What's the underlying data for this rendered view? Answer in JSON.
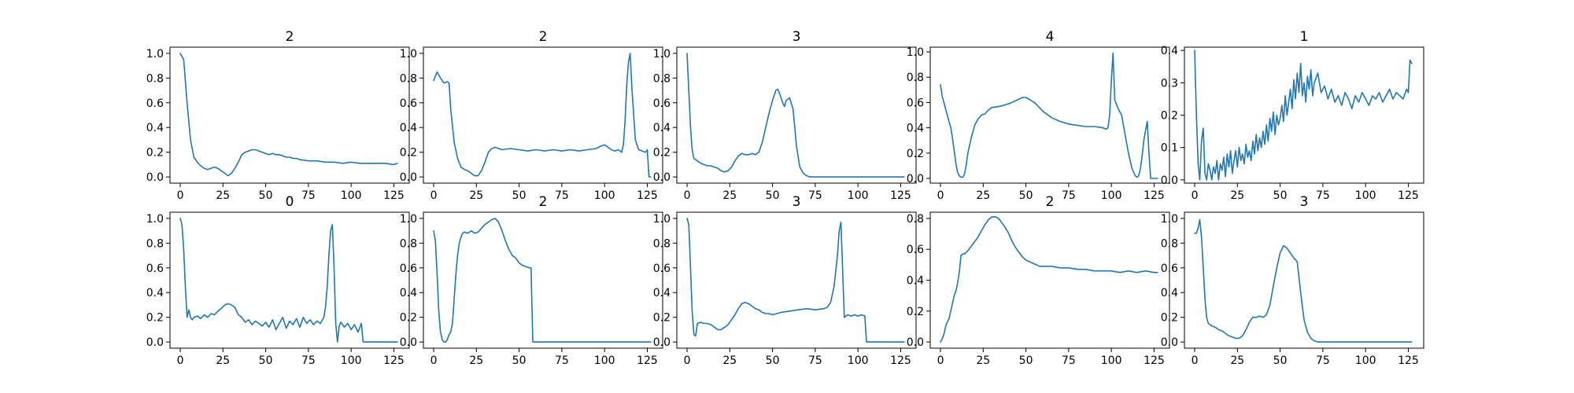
{
  "figure": {
    "line_color": "#1f77b4"
  },
  "chart_data": [
    {
      "type": "line",
      "title": "2",
      "xlim": [
        -6,
        134
      ],
      "ylim": [
        -0.05,
        1.05
      ],
      "xticks": [
        0,
        25,
        50,
        75,
        100,
        125
      ],
      "yticks": [
        0.0,
        0.2,
        0.4,
        0.6,
        0.8,
        1.0
      ],
      "ytick_decimals": 1,
      "x": [
        0,
        2,
        4,
        6,
        8,
        10,
        12,
        14,
        16,
        18,
        20,
        22,
        24,
        26,
        28,
        30,
        32,
        34,
        36,
        38,
        40,
        42,
        44,
        46,
        48,
        50,
        52,
        54,
        56,
        58,
        60,
        62,
        64,
        66,
        68,
        70,
        75,
        80,
        85,
        90,
        95,
        100,
        105,
        110,
        115,
        120,
        125,
        127
      ],
      "y": [
        1.0,
        0.95,
        0.6,
        0.3,
        0.16,
        0.12,
        0.09,
        0.07,
        0.06,
        0.07,
        0.08,
        0.07,
        0.05,
        0.03,
        0.01,
        0.03,
        0.07,
        0.12,
        0.18,
        0.2,
        0.21,
        0.22,
        0.22,
        0.21,
        0.2,
        0.19,
        0.18,
        0.19,
        0.18,
        0.18,
        0.17,
        0.16,
        0.16,
        0.15,
        0.15,
        0.14,
        0.13,
        0.13,
        0.12,
        0.12,
        0.11,
        0.12,
        0.11,
        0.11,
        0.11,
        0.11,
        0.1,
        0.11
      ]
    },
    {
      "type": "line",
      "title": "2",
      "xlim": [
        -6,
        134
      ],
      "ylim": [
        -0.05,
        1.05
      ],
      "xticks": [
        0,
        25,
        50,
        75,
        100,
        125
      ],
      "yticks": [
        0.0,
        0.2,
        0.4,
        0.6,
        0.8,
        1.0
      ],
      "ytick_decimals": 1,
      "x": [
        0,
        2,
        4,
        6,
        8,
        9,
        10,
        12,
        14,
        16,
        18,
        20,
        22,
        24,
        26,
        28,
        30,
        32,
        34,
        36,
        40,
        45,
        50,
        55,
        60,
        65,
        70,
        75,
        80,
        85,
        90,
        95,
        98,
        100,
        102,
        104,
        106,
        108,
        110,
        111,
        112,
        113,
        114,
        115,
        116,
        118,
        120,
        122,
        124,
        125,
        126,
        127
      ],
      "y": [
        0.78,
        0.85,
        0.8,
        0.76,
        0.77,
        0.76,
        0.55,
        0.28,
        0.15,
        0.08,
        0.06,
        0.05,
        0.03,
        0.01,
        0.01,
        0.05,
        0.12,
        0.2,
        0.23,
        0.24,
        0.22,
        0.23,
        0.22,
        0.21,
        0.22,
        0.21,
        0.22,
        0.21,
        0.22,
        0.21,
        0.22,
        0.23,
        0.25,
        0.26,
        0.24,
        0.22,
        0.21,
        0.22,
        0.2,
        0.26,
        0.45,
        0.75,
        0.93,
        1.0,
        0.72,
        0.3,
        0.22,
        0.21,
        0.2,
        0.22,
        0.0,
        0.0
      ]
    },
    {
      "type": "line",
      "title": "3",
      "xlim": [
        -6,
        134
      ],
      "ylim": [
        -0.05,
        1.05
      ],
      "xticks": [
        0,
        25,
        50,
        75,
        100,
        125
      ],
      "yticks": [
        0.0,
        0.2,
        0.4,
        0.6,
        0.8,
        1.0
      ],
      "ytick_decimals": 1,
      "x": [
        0,
        1,
        2,
        3,
        4,
        5,
        6,
        8,
        10,
        12,
        14,
        16,
        18,
        20,
        22,
        24,
        26,
        28,
        30,
        32,
        34,
        36,
        38,
        40,
        42,
        44,
        46,
        48,
        50,
        52,
        53,
        54,
        56,
        57,
        58,
        60,
        62,
        64,
        66,
        68,
        70,
        72,
        75,
        80,
        90,
        100,
        110,
        120,
        127
      ],
      "y": [
        1.0,
        0.7,
        0.4,
        0.22,
        0.15,
        0.14,
        0.13,
        0.11,
        0.1,
        0.09,
        0.09,
        0.08,
        0.07,
        0.05,
        0.04,
        0.05,
        0.08,
        0.13,
        0.17,
        0.19,
        0.18,
        0.18,
        0.19,
        0.18,
        0.2,
        0.28,
        0.4,
        0.52,
        0.62,
        0.7,
        0.71,
        0.68,
        0.6,
        0.57,
        0.62,
        0.64,
        0.55,
        0.25,
        0.08,
        0.03,
        0.01,
        0.0,
        0.0,
        0.0,
        0.0,
        0.0,
        0.0,
        0.0,
        0.0
      ]
    },
    {
      "type": "line",
      "title": "4",
      "xlim": [
        -6,
        134
      ],
      "ylim": [
        -0.0375,
        1.0375
      ],
      "xticks": [
        0,
        25,
        50,
        75,
        100,
        125
      ],
      "yticks": [
        0.0,
        0.2,
        0.4,
        0.6,
        0.8,
        1.0
      ],
      "ytick_decimals": 1,
      "x": [
        0,
        1,
        3,
        5,
        6,
        7,
        8,
        9,
        10,
        11,
        12,
        13,
        14,
        15,
        16,
        18,
        20,
        22,
        24,
        26,
        28,
        30,
        35,
        40,
        45,
        48,
        50,
        55,
        60,
        65,
        70,
        75,
        80,
        85,
        90,
        95,
        97,
        98,
        99,
        100,
        101,
        102,
        104,
        106,
        108,
        110,
        112,
        114,
        115,
        116,
        117,
        118,
        119,
        120,
        121,
        122,
        123,
        124,
        125,
        126,
        127
      ],
      "y": [
        0.74,
        0.65,
        0.55,
        0.45,
        0.4,
        0.32,
        0.22,
        0.12,
        0.05,
        0.02,
        0.01,
        0.01,
        0.03,
        0.1,
        0.2,
        0.32,
        0.42,
        0.47,
        0.5,
        0.51,
        0.54,
        0.56,
        0.57,
        0.59,
        0.62,
        0.64,
        0.64,
        0.6,
        0.53,
        0.48,
        0.45,
        0.43,
        0.42,
        0.41,
        0.41,
        0.4,
        0.39,
        0.4,
        0.5,
        0.78,
        0.99,
        0.62,
        0.55,
        0.5,
        0.35,
        0.2,
        0.08,
        0.02,
        0.01,
        0.02,
        0.08,
        0.18,
        0.3,
        0.38,
        0.45,
        0.2,
        0.0,
        0.0,
        0.0,
        0.0,
        0.0
      ]
    },
    {
      "type": "line",
      "title": "1",
      "xlim": [
        -6,
        134
      ],
      "ylim": [
        -0.01,
        0.41
      ],
      "xticks": [
        0,
        25,
        50,
        75,
        100,
        125
      ],
      "yticks": [
        0.0,
        0.1,
        0.2,
        0.3,
        0.4
      ],
      "ytick_decimals": 1,
      "x": [
        0,
        1,
        2,
        3,
        4,
        5,
        6,
        7,
        8,
        9,
        10,
        11,
        12,
        13,
        14,
        15,
        16,
        17,
        18,
        19,
        20,
        21,
        22,
        23,
        24,
        25,
        26,
        27,
        28,
        29,
        30,
        31,
        32,
        33,
        34,
        35,
        36,
        37,
        38,
        39,
        40,
        41,
        42,
        43,
        44,
        45,
        46,
        47,
        48,
        49,
        50,
        51,
        52,
        53,
        54,
        55,
        56,
        57,
        58,
        59,
        60,
        61,
        62,
        63,
        64,
        65,
        66,
        67,
        68,
        69,
        70,
        72,
        74,
        76,
        78,
        80,
        82,
        84,
        86,
        88,
        90,
        92,
        94,
        96,
        98,
        100,
        102,
        104,
        106,
        108,
        110,
        112,
        114,
        116,
        118,
        120,
        122,
        124,
        125,
        126,
        127
      ],
      "y": [
        0.4,
        0.2,
        0.05,
        0.0,
        0.12,
        0.16,
        0.02,
        0.0,
        0.05,
        0.03,
        0.0,
        0.04,
        0.02,
        0.06,
        0.0,
        0.05,
        0.03,
        0.07,
        0.01,
        0.08,
        0.04,
        0.09,
        0.02,
        0.06,
        0.09,
        0.04,
        0.1,
        0.06,
        0.08,
        0.05,
        0.11,
        0.07,
        0.09,
        0.06,
        0.12,
        0.08,
        0.14,
        0.09,
        0.13,
        0.1,
        0.15,
        0.11,
        0.17,
        0.12,
        0.19,
        0.15,
        0.21,
        0.14,
        0.2,
        0.17,
        0.19,
        0.23,
        0.18,
        0.26,
        0.2,
        0.24,
        0.28,
        0.22,
        0.31,
        0.25,
        0.33,
        0.27,
        0.36,
        0.26,
        0.3,
        0.24,
        0.32,
        0.28,
        0.34,
        0.26,
        0.3,
        0.33,
        0.27,
        0.29,
        0.25,
        0.28,
        0.24,
        0.26,
        0.23,
        0.27,
        0.25,
        0.22,
        0.26,
        0.24,
        0.27,
        0.25,
        0.23,
        0.26,
        0.25,
        0.27,
        0.24,
        0.26,
        0.28,
        0.25,
        0.27,
        0.26,
        0.25,
        0.28,
        0.27,
        0.37,
        0.36
      ]
    },
    {
      "type": "line",
      "title": "0",
      "xlim": [
        -6,
        134
      ],
      "ylim": [
        -0.05,
        1.05
      ],
      "xticks": [
        0,
        25,
        50,
        75,
        100,
        125
      ],
      "yticks": [
        0.0,
        0.2,
        0.4,
        0.6,
        0.8,
        1.0
      ],
      "ytick_decimals": 1,
      "x": [
        0,
        1,
        2,
        3,
        4,
        5,
        6,
        7,
        8,
        10,
        12,
        14,
        16,
        18,
        20,
        22,
        24,
        26,
        28,
        30,
        32,
        34,
        36,
        38,
        40,
        42,
        44,
        46,
        48,
        50,
        52,
        54,
        56,
        58,
        60,
        62,
        64,
        66,
        68,
        70,
        72,
        74,
        76,
        78,
        80,
        82,
        84,
        85,
        86,
        87,
        88,
        89,
        90,
        91,
        92,
        93,
        94,
        96,
        98,
        100,
        102,
        104,
        106,
        107,
        110,
        115,
        120,
        127
      ],
      "y": [
        1.0,
        0.95,
        0.75,
        0.45,
        0.2,
        0.26,
        0.2,
        0.18,
        0.2,
        0.21,
        0.19,
        0.22,
        0.2,
        0.23,
        0.22,
        0.25,
        0.27,
        0.3,
        0.31,
        0.3,
        0.28,
        0.22,
        0.2,
        0.16,
        0.18,
        0.14,
        0.17,
        0.15,
        0.13,
        0.16,
        0.12,
        0.18,
        0.1,
        0.15,
        0.2,
        0.11,
        0.17,
        0.14,
        0.19,
        0.12,
        0.2,
        0.15,
        0.18,
        0.14,
        0.17,
        0.15,
        0.2,
        0.28,
        0.45,
        0.7,
        0.9,
        0.95,
        0.6,
        0.15,
        0.0,
        0.13,
        0.16,
        0.12,
        0.15,
        0.1,
        0.14,
        0.08,
        0.15,
        0.0,
        0.0,
        0.0,
        0.0,
        0.0
      ]
    },
    {
      "type": "line",
      "title": "2",
      "xlim": [
        -6,
        134
      ],
      "ylim": [
        -0.05,
        1.05
      ],
      "xticks": [
        0,
        25,
        50,
        75,
        100,
        125
      ],
      "yticks": [
        0.0,
        0.2,
        0.4,
        0.6,
        0.8,
        1.0
      ],
      "ytick_decimals": 1,
      "x": [
        0,
        1,
        2,
        3,
        4,
        5,
        6,
        7,
        8,
        9,
        10,
        11,
        12,
        13,
        14,
        15,
        16,
        17,
        18,
        20,
        22,
        24,
        26,
        28,
        30,
        32,
        34,
        36,
        38,
        40,
        42,
        44,
        46,
        48,
        50,
        52,
        54,
        56,
        57,
        58,
        60,
        70,
        80,
        90,
        100,
        110,
        120,
        127
      ],
      "y": [
        0.9,
        0.82,
        0.55,
        0.25,
        0.08,
        0.02,
        0.0,
        0.0,
        0.02,
        0.06,
        0.08,
        0.15,
        0.35,
        0.55,
        0.7,
        0.8,
        0.85,
        0.88,
        0.89,
        0.88,
        0.9,
        0.88,
        0.89,
        0.92,
        0.95,
        0.97,
        0.99,
        1.0,
        0.97,
        0.9,
        0.82,
        0.75,
        0.7,
        0.68,
        0.64,
        0.62,
        0.61,
        0.6,
        0.6,
        0.0,
        0.0,
        0.0,
        0.0,
        0.0,
        0.0,
        0.0,
        0.0,
        0.0
      ]
    },
    {
      "type": "line",
      "title": "3",
      "xlim": [
        -6,
        134
      ],
      "ylim": [
        -0.05,
        1.05
      ],
      "xticks": [
        0,
        25,
        50,
        75,
        100,
        125
      ],
      "yticks": [
        0.0,
        0.2,
        0.4,
        0.6,
        0.8,
        1.0
      ],
      "ytick_decimals": 1,
      "x": [
        0,
        1,
        2,
        3,
        4,
        5,
        6,
        8,
        10,
        12,
        14,
        16,
        18,
        20,
        22,
        24,
        26,
        28,
        30,
        32,
        34,
        36,
        38,
        40,
        42,
        44,
        46,
        48,
        50,
        55,
        60,
        65,
        70,
        75,
        80,
        82,
        84,
        86,
        88,
        89,
        90,
        91,
        92,
        94,
        96,
        98,
        100,
        102,
        104,
        105,
        110,
        115,
        120,
        127
      ],
      "y": [
        1.0,
        0.95,
        0.6,
        0.25,
        0.06,
        0.05,
        0.15,
        0.16,
        0.15,
        0.15,
        0.14,
        0.12,
        0.1,
        0.1,
        0.12,
        0.14,
        0.18,
        0.22,
        0.27,
        0.31,
        0.32,
        0.31,
        0.29,
        0.27,
        0.26,
        0.24,
        0.23,
        0.23,
        0.22,
        0.24,
        0.25,
        0.26,
        0.27,
        0.26,
        0.27,
        0.28,
        0.32,
        0.45,
        0.7,
        0.9,
        0.97,
        0.6,
        0.2,
        0.22,
        0.21,
        0.22,
        0.21,
        0.22,
        0.21,
        0.0,
        0.0,
        0.0,
        0.0,
        0.0
      ]
    },
    {
      "type": "line",
      "title": "2",
      "xlim": [
        -6,
        134
      ],
      "ylim": [
        -0.04,
        0.84
      ],
      "xticks": [
        0,
        25,
        50,
        75,
        100,
        125
      ],
      "yticks": [
        0.0,
        0.2,
        0.4,
        0.6,
        0.8
      ],
      "ytick_decimals": 1,
      "x": [
        0,
        1,
        2,
        3,
        4,
        5,
        6,
        7,
        8,
        9,
        10,
        11,
        12,
        13,
        14,
        16,
        18,
        20,
        22,
        24,
        26,
        28,
        30,
        32,
        34,
        36,
        38,
        40,
        42,
        44,
        46,
        48,
        50,
        52,
        54,
        56,
        58,
        60,
        65,
        70,
        75,
        80,
        85,
        90,
        95,
        100,
        105,
        110,
        115,
        120,
        125,
        127
      ],
      "y": [
        0.0,
        0.02,
        0.05,
        0.1,
        0.13,
        0.15,
        0.2,
        0.25,
        0.3,
        0.33,
        0.38,
        0.45,
        0.56,
        0.57,
        0.57,
        0.59,
        0.62,
        0.65,
        0.68,
        0.72,
        0.76,
        0.79,
        0.81,
        0.81,
        0.8,
        0.77,
        0.74,
        0.7,
        0.65,
        0.61,
        0.58,
        0.55,
        0.53,
        0.52,
        0.51,
        0.5,
        0.49,
        0.49,
        0.49,
        0.48,
        0.48,
        0.47,
        0.47,
        0.46,
        0.46,
        0.46,
        0.45,
        0.46,
        0.45,
        0.46,
        0.45,
        0.45
      ]
    },
    {
      "type": "line",
      "title": "3",
      "xlim": [
        -6,
        134
      ],
      "ylim": [
        -0.05,
        1.05
      ],
      "xticks": [
        0,
        25,
        50,
        75,
        100,
        125
      ],
      "yticks": [
        0.0,
        0.2,
        0.4,
        0.6,
        0.8,
        1.0
      ],
      "ytick_decimals": 1,
      "x": [
        0,
        1,
        2,
        3,
        4,
        5,
        6,
        7,
        8,
        10,
        12,
        14,
        16,
        18,
        20,
        22,
        24,
        26,
        28,
        30,
        32,
        34,
        36,
        38,
        40,
        42,
        44,
        46,
        48,
        50,
        52,
        54,
        56,
        57,
        58,
        60,
        62,
        64,
        66,
        68,
        70,
        72,
        75,
        80,
        90,
        100,
        110,
        120,
        127
      ],
      "y": [
        0.88,
        0.88,
        0.92,
        0.99,
        0.85,
        0.6,
        0.35,
        0.2,
        0.15,
        0.13,
        0.12,
        0.1,
        0.09,
        0.07,
        0.05,
        0.04,
        0.03,
        0.03,
        0.05,
        0.1,
        0.16,
        0.2,
        0.2,
        0.21,
        0.2,
        0.22,
        0.3,
        0.45,
        0.6,
        0.72,
        0.78,
        0.76,
        0.72,
        0.7,
        0.68,
        0.65,
        0.4,
        0.18,
        0.08,
        0.03,
        0.01,
        0.0,
        0.0,
        0.0,
        0.0,
        0.0,
        0.0,
        0.0,
        0.0
      ]
    }
  ]
}
